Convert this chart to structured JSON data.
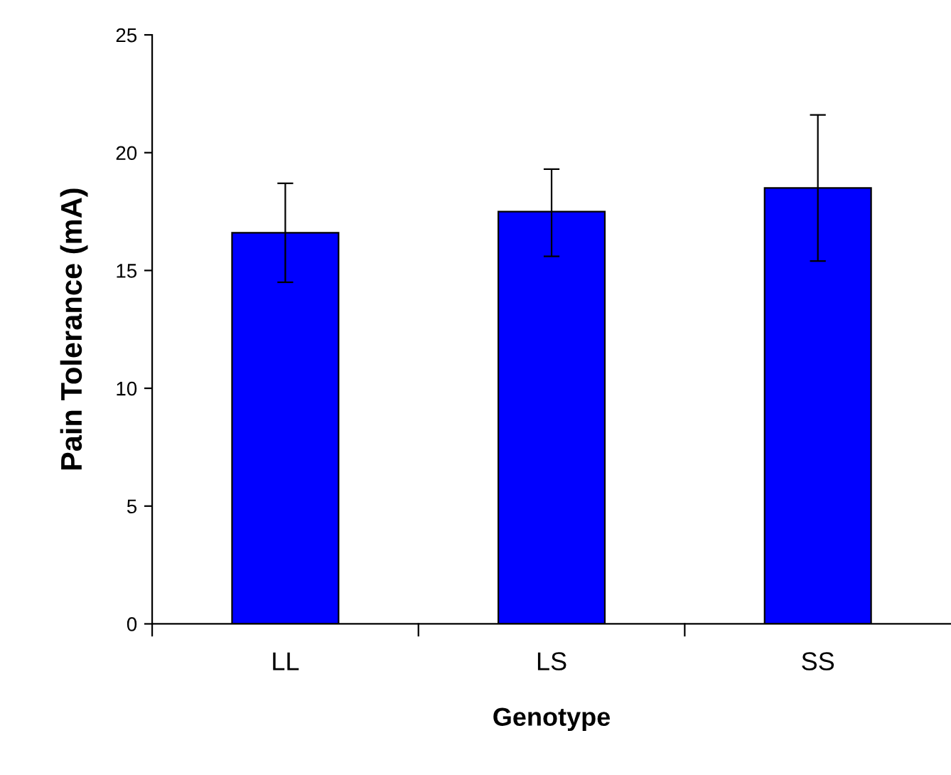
{
  "chart_data": {
    "type": "bar",
    "xlabel": "Genotype",
    "ylabel": "Pain Tolerance (mA)",
    "categories": [
      "LL",
      "LS",
      "SS"
    ],
    "values": [
      16.6,
      17.5,
      18.5
    ],
    "errors": [
      [
        14.5,
        18.7
      ],
      [
        15.6,
        19.3
      ],
      [
        15.4,
        21.6
      ]
    ],
    "color": "#0000ff",
    "ylim": [
      0,
      25
    ],
    "yticks": [
      0,
      5,
      10,
      15,
      20,
      25
    ],
    "grid": false,
    "legend": false
  }
}
